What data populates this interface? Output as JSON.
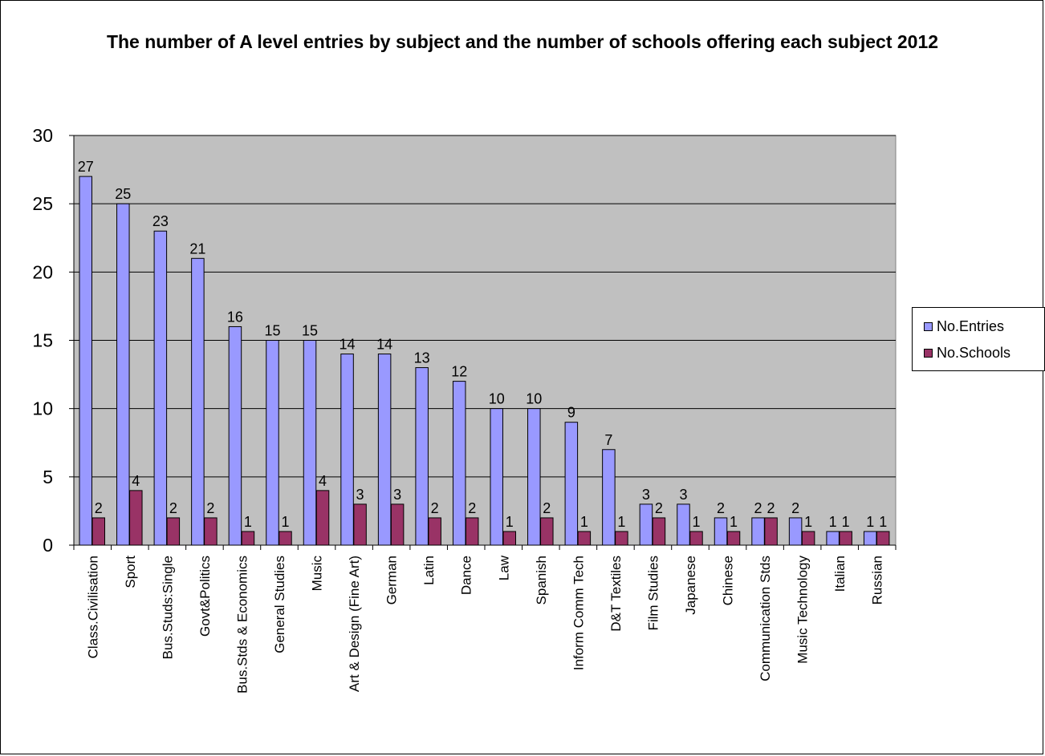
{
  "chart_data": {
    "type": "bar",
    "title": "The number of A level entries by subject and the number of schools offering each subject 2012",
    "categories": [
      "Class.Civilisation",
      "Sport",
      "Bus.Studs:Single",
      "Govt&Politics",
      "Bus.Stds & Economics",
      "General Studies",
      "Music",
      "Art & Design (Fine Art)",
      "German",
      "Latin",
      "Dance",
      "Law",
      "Spanish",
      "Inform Comm Tech",
      "D&T Textiles",
      "Film Studies",
      "Japanese",
      "Chinese",
      "Communication Stds",
      "Music Technology",
      "Italian",
      "Russian"
    ],
    "series": [
      {
        "name": "No.Entries",
        "color": "#9999ff",
        "values": [
          27,
          25,
          23,
          21,
          16,
          15,
          15,
          14,
          14,
          13,
          12,
          10,
          10,
          9,
          7,
          3,
          3,
          2,
          2,
          2,
          1,
          1
        ]
      },
      {
        "name": "No.Schools",
        "color": "#993366",
        "values": [
          2,
          4,
          2,
          2,
          1,
          1,
          4,
          3,
          3,
          2,
          2,
          1,
          2,
          1,
          1,
          2,
          1,
          1,
          2,
          1,
          1,
          1
        ]
      }
    ],
    "ylim": [
      0,
      30
    ],
    "yticks": [
      0,
      5,
      10,
      15,
      20,
      25,
      30
    ],
    "grid": true,
    "plot_background": "#c0c0c0",
    "data_labels": true,
    "legend_position": "right"
  }
}
